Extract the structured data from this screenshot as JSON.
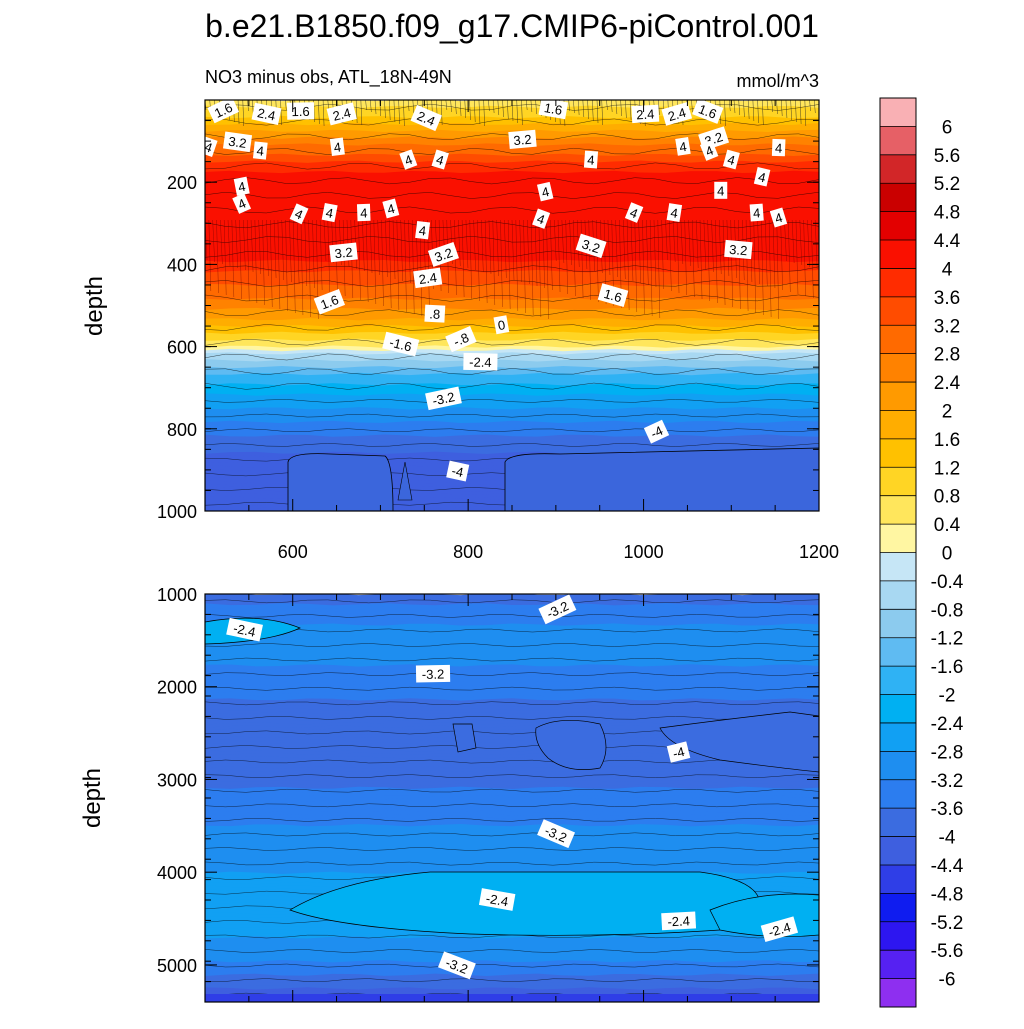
{
  "title": "b.e21.B1850.f09_g17.CMIP6-piControl.001",
  "units": "mmol/m^3",
  "chart_data": [
    {
      "type": "contour",
      "name": "upper-panel",
      "subtitle": "NO3 minus obs, ATL_18N-49N",
      "units": "mmol/m^3",
      "ylabel": "depth",
      "xlabel": "",
      "xlim": [
        500,
        1200
      ],
      "ylim": [
        1000,
        0
      ],
      "xticks": [
        "600",
        "800",
        "1000",
        "1200"
      ],
      "yticks": [
        "200",
        "400",
        "600",
        "800",
        "1000"
      ],
      "profile": [
        {
          "depth": 0,
          "value": 0.6
        },
        {
          "depth": 40,
          "value": 1.2
        },
        {
          "depth": 90,
          "value": 2.4
        },
        {
          "depth": 150,
          "value": 3.6
        },
        {
          "depth": 200,
          "value": 4.3
        },
        {
          "depth": 300,
          "value": 4.4
        },
        {
          "depth": 380,
          "value": 4.1
        },
        {
          "depth": 420,
          "value": 3.6
        },
        {
          "depth": 480,
          "value": 2.8
        },
        {
          "depth": 530,
          "value": 2.0
        },
        {
          "depth": 570,
          "value": 1.2
        },
        {
          "depth": 605,
          "value": 0.2
        },
        {
          "depth": 630,
          "value": -0.8
        },
        {
          "depth": 670,
          "value": -1.6
        },
        {
          "depth": 720,
          "value": -2.4
        },
        {
          "depth": 770,
          "value": -3.0
        },
        {
          "depth": 820,
          "value": -3.6
        },
        {
          "depth": 860,
          "value": -4.0
        },
        {
          "depth": 1000,
          "value": -4.1
        }
      ],
      "contour_labels": [
        {
          "text": "1.6",
          "x": 521,
          "y": 25
        },
        {
          "text": "2.4",
          "x": 570,
          "y": 35
        },
        {
          "text": "1.6",
          "x": 609,
          "y": 28
        },
        {
          "text": "2.4",
          "x": 656,
          "y": 35
        },
        {
          "text": "2.4",
          "x": 752,
          "y": 45
        },
        {
          "text": "1.6",
          "x": 897,
          "y": 22
        },
        {
          "text": "2.4",
          "x": 1002,
          "y": 35
        },
        {
          "text": "2.4",
          "x": 1038,
          "y": 35
        },
        {
          "text": "1.6",
          "x": 1073,
          "y": 28
        },
        {
          "text": "3.2",
          "x": 537,
          "y": 103
        },
        {
          "text": "3.2",
          "x": 862,
          "y": 97
        },
        {
          "text": "3.2",
          "x": 1080,
          "y": 95
        },
        {
          "text": "4",
          "x": 504,
          "y": 115
        },
        {
          "text": "4",
          "x": 563,
          "y": 124
        },
        {
          "text": "4",
          "x": 651,
          "y": 115
        },
        {
          "text": "4",
          "x": 732,
          "y": 146
        },
        {
          "text": "4",
          "x": 768,
          "y": 146
        },
        {
          "text": "4",
          "x": 940,
          "y": 146
        },
        {
          "text": "4",
          "x": 1045,
          "y": 114
        },
        {
          "text": "4",
          "x": 1075,
          "y": 124
        },
        {
          "text": "4",
          "x": 1100,
          "y": 146
        },
        {
          "text": "4",
          "x": 1154,
          "y": 117
        },
        {
          "text": "4",
          "x": 542,
          "y": 211
        },
        {
          "text": "4",
          "x": 542,
          "y": 253
        },
        {
          "text": "4",
          "x": 1135,
          "y": 188
        },
        {
          "text": "4",
          "x": 1088,
          "y": 221
        },
        {
          "text": "4",
          "x": 888,
          "y": 224
        },
        {
          "text": "4",
          "x": 607,
          "y": 278
        },
        {
          "text": "4",
          "x": 642,
          "y": 275
        },
        {
          "text": "4",
          "x": 681,
          "y": 275
        },
        {
          "text": "4",
          "x": 712,
          "y": 265
        },
        {
          "text": "4",
          "x": 989,
          "y": 275
        },
        {
          "text": "4",
          "x": 1035,
          "y": 275
        },
        {
          "text": "4",
          "x": 1129,
          "y": 275
        },
        {
          "text": "4",
          "x": 1154,
          "y": 287
        },
        {
          "text": "4",
          "x": 883,
          "y": 290
        },
        {
          "text": "4",
          "x": 748,
          "y": 318
        },
        {
          "text": "3.2",
          "x": 658,
          "y": 372
        },
        {
          "text": "3.2",
          "x": 772,
          "y": 377
        },
        {
          "text": "3.2",
          "x": 940,
          "y": 356
        },
        {
          "text": "3.2",
          "x": 1108,
          "y": 365
        },
        {
          "text": "2.4",
          "x": 754,
          "y": 434
        },
        {
          "text": "1.6",
          "x": 642,
          "y": 492
        },
        {
          "text": "1.6",
          "x": 965,
          "y": 476
        },
        {
          "text": ".8",
          "x": 762,
          "y": 521
        },
        {
          "text": "0",
          "x": 838,
          "y": 548
        },
        {
          "text": "-.8",
          "x": 792,
          "y": 583
        },
        {
          "text": "-1.6",
          "x": 723,
          "y": 595
        },
        {
          "text": "-2.4",
          "x": 814,
          "y": 638
        },
        {
          "text": "-3.2",
          "x": 772,
          "y": 727
        },
        {
          "text": "-4",
          "x": 1015,
          "y": 808
        },
        {
          "text": "-4",
          "x": 788,
          "y": 904
        }
      ]
    },
    {
      "type": "contour",
      "name": "lower-panel",
      "ylabel": "depth",
      "xlabel": "",
      "xlim": [
        500,
        1200
      ],
      "ylim": [
        5400,
        1000
      ],
      "yticks": [
        "1000",
        "2000",
        "3000",
        "4000",
        "5000"
      ],
      "profile": [
        {
          "depth": 1000,
          "value": -3.9
        },
        {
          "depth": 1200,
          "value": -3.4
        },
        {
          "depth": 1450,
          "value": -3.0
        },
        {
          "depth": 1650,
          "value": -3.1
        },
        {
          "depth": 1900,
          "value": -3.3
        },
        {
          "depth": 2200,
          "value": -3.7
        },
        {
          "depth": 2500,
          "value": -3.8
        },
        {
          "depth": 2800,
          "value": -3.8
        },
        {
          "depth": 3100,
          "value": -3.6
        },
        {
          "depth": 3400,
          "value": -3.3
        },
        {
          "depth": 3700,
          "value": -3.0
        },
        {
          "depth": 4000,
          "value": -2.8
        },
        {
          "depth": 4300,
          "value": -2.6
        },
        {
          "depth": 4550,
          "value": -2.6
        },
        {
          "depth": 4800,
          "value": -2.9
        },
        {
          "depth": 5000,
          "value": -3.3
        },
        {
          "depth": 5200,
          "value": -3.8
        },
        {
          "depth": 5400,
          "value": -4.6
        }
      ],
      "contour_labels": [
        {
          "text": "-3.2",
          "x": 902,
          "y": 1170
        },
        {
          "text": "-2.4",
          "x": 545,
          "y": 1390
        },
        {
          "text": "-3.2",
          "x": 760,
          "y": 1865
        },
        {
          "text": "-4",
          "x": 1040,
          "y": 2710
        },
        {
          "text": "-3.2",
          "x": 900,
          "y": 3590
        },
        {
          "text": "-2.4",
          "x": 833,
          "y": 4300
        },
        {
          "text": "-2.4",
          "x": 1040,
          "y": 4530
        },
        {
          "text": "-2.4",
          "x": 1155,
          "y": 4620
        },
        {
          "text": "-3.2",
          "x": 787,
          "y": 5010
        }
      ]
    }
  ],
  "colorbar": {
    "labels": [
      "6",
      "5.6",
      "5.2",
      "4.8",
      "4.4",
      "4",
      "3.6",
      "3.2",
      "2.8",
      "2.4",
      "2",
      "1.6",
      "1.2",
      "0.8",
      "0.4",
      "0",
      "-0.4",
      "-0.8",
      "-1.2",
      "-1.6",
      "-2",
      "-2.4",
      "-2.8",
      "-3.2",
      "-3.6",
      "-4",
      "-4.4",
      "-4.8",
      "-5.2",
      "-5.6",
      "-6"
    ],
    "colors": [
      "#f9b0b4",
      "#e66066",
      "#d22628",
      "#ca0000",
      "#e30000",
      "#fa1000",
      "#ff2c00",
      "#ff4c00",
      "#ff6a00",
      "#ff8200",
      "#ff9a00",
      "#ffad00",
      "#ffc100",
      "#ffd524",
      "#ffe65c",
      "#fff6a2",
      "#c6e6f6",
      "#a8d8f2",
      "#8ccbee",
      "#5fbbf2",
      "#2fb2f4",
      "#00b0f2",
      "#11a0f3",
      "#1e8ef0",
      "#2c7def",
      "#3b6ce0",
      "#3e5fdf",
      "#2f3ee7",
      "#0f1cf0",
      "#2d16f0",
      "#5621f2",
      "#8e2ff0"
    ]
  }
}
